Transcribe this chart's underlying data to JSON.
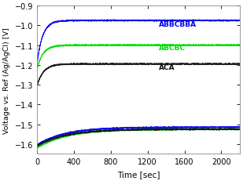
{
  "xlabel": "Time [sec]",
  "ylabel": "Voltage vs. Ref (Ag/AgCl) [V]",
  "xlim": [
    0,
    2200
  ],
  "ylim": [
    -1.65,
    -0.9
  ],
  "yticks": [
    -1.6,
    -1.5,
    -1.4,
    -1.3,
    -1.2,
    -1.1,
    -1.0,
    -0.9
  ],
  "xticks": [
    0,
    400,
    800,
    1200,
    1600,
    2000
  ],
  "series": [
    {
      "label": "ABBCBBA",
      "color": "#0000ee",
      "upper_start": -1.195,
      "upper_plateau": -0.975,
      "upper_tau": 60,
      "lower_start": -1.605,
      "lower_plateau": -1.515,
      "lower_tau": 300
    },
    {
      "label": "ABCBC",
      "color": "#00dd00",
      "upper_start": -1.22,
      "upper_plateau": -1.1,
      "upper_tau": 65,
      "lower_start": -1.62,
      "lower_plateau": -1.525,
      "lower_tau": 320
    },
    {
      "label": "ACA",
      "color": "#111111",
      "upper_start": -1.305,
      "upper_plateau": -1.195,
      "upper_tau": 70,
      "lower_start": -1.61,
      "lower_plateau": -1.525,
      "lower_tau": 310
    }
  ],
  "bg_color": "#ffffff",
  "plot_bg": "#ffffff",
  "label_positions": {
    "ABBCBBA": [
      1320,
      -0.993
    ],
    "ABCBC": [
      1320,
      -1.113
    ],
    "ACA": [
      1320,
      -1.21
    ]
  },
  "noise_std": 0.0018,
  "linewidth": 0.6
}
